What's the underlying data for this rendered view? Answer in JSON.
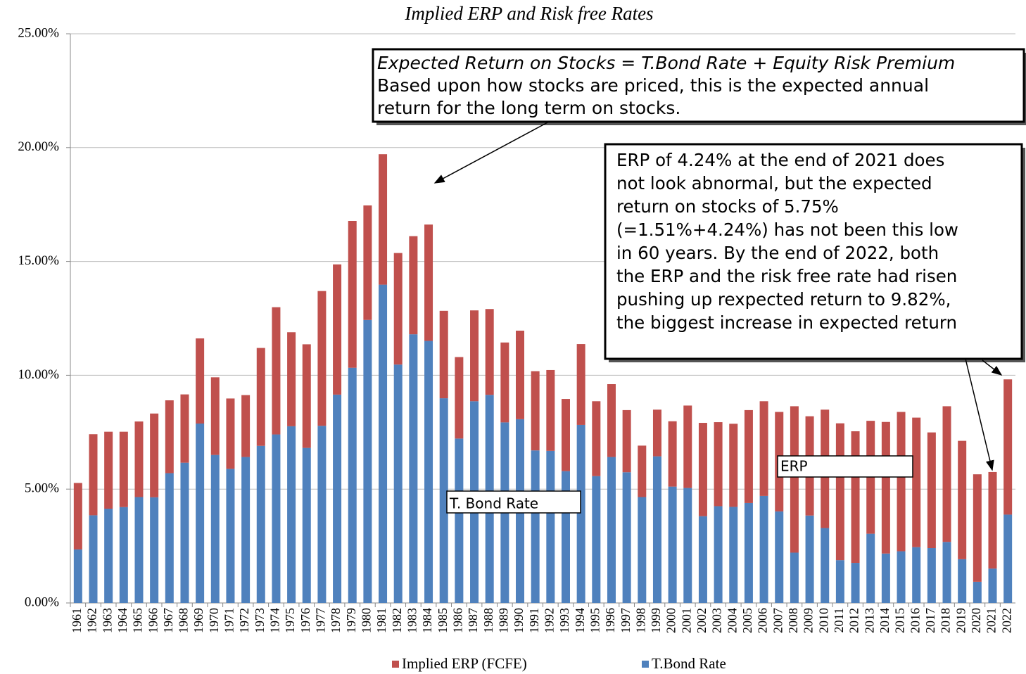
{
  "chart_data": {
    "type": "stacked_bar",
    "title": "Implied ERP and Risk free Rates",
    "categories": [
      "1961",
      "1962",
      "1963",
      "1964",
      "1965",
      "1966",
      "1967",
      "1968",
      "1969",
      "1970",
      "1971",
      "1972",
      "1973",
      "1974",
      "1975",
      "1976",
      "1977",
      "1978",
      "1979",
      "1980",
      "1981",
      "1982",
      "1983",
      "1984",
      "1985",
      "1986",
      "1987",
      "1988",
      "1989",
      "1990",
      "1991",
      "1992",
      "1993",
      "1994",
      "1995",
      "1996",
      "1997",
      "1998",
      "1999",
      "2000",
      "2001",
      "2002",
      "2003",
      "2004",
      "2005",
      "2006",
      "2007",
      "2008",
      "2009",
      "2010",
      "2011",
      "2012",
      "2013",
      "2014",
      "2015",
      "2016",
      "2017",
      "2018",
      "2019",
      "2020",
      "2021",
      "2022"
    ],
    "series": [
      {
        "name": "T.Bond Rate",
        "color": "#4f81bd",
        "values": [
          2.35,
          3.85,
          4.14,
          4.21,
          4.65,
          4.64,
          5.7,
          6.16,
          7.88,
          6.5,
          5.89,
          6.41,
          6.9,
          7.4,
          7.76,
          6.81,
          7.78,
          9.15,
          10.33,
          12.43,
          13.98,
          10.47,
          11.8,
          11.51,
          8.99,
          7.22,
          8.86,
          9.14,
          7.93,
          8.07,
          6.7,
          6.68,
          5.79,
          7.82,
          5.57,
          6.41,
          5.74,
          4.65,
          6.44,
          5.11,
          5.05,
          3.81,
          4.25,
          4.22,
          4.39,
          4.7,
          4.02,
          2.21,
          3.84,
          3.29,
          1.88,
          1.76,
          3.04,
          2.17,
          2.27,
          2.45,
          2.41,
          2.68,
          1.92,
          0.93,
          1.51,
          3.88
        ]
      },
      {
        "name": "Implied ERP (FCFE)",
        "color": "#c0504d",
        "values": [
          2.92,
          3.56,
          3.38,
          3.31,
          3.32,
          3.68,
          3.2,
          3.0,
          3.74,
          3.41,
          3.09,
          2.72,
          4.3,
          5.59,
          4.13,
          4.55,
          5.92,
          5.72,
          6.45,
          5.03,
          5.73,
          4.9,
          4.31,
          5.11,
          3.84,
          3.58,
          3.99,
          3.77,
          3.51,
          3.89,
          3.48,
          3.55,
          3.17,
          3.55,
          3.29,
          3.2,
          2.73,
          2.26,
          2.05,
          2.87,
          3.62,
          4.1,
          3.69,
          3.65,
          4.08,
          4.16,
          4.37,
          6.43,
          4.36,
          5.2,
          6.01,
          5.78,
          4.96,
          5.78,
          6.12,
          5.69,
          5.08,
          5.96,
          5.2,
          4.72,
          4.24,
          5.94
        ]
      }
    ],
    "ylim": [
      0,
      25
    ],
    "yticks": [
      {
        "value": 0,
        "label": "0.00%"
      },
      {
        "value": 5,
        "label": "5.00%"
      },
      {
        "value": 10,
        "label": "10.00%"
      },
      {
        "value": 15,
        "label": "15.00%"
      },
      {
        "value": 20,
        "label": "20.00%"
      },
      {
        "value": 25,
        "label": "25.00%"
      }
    ],
    "grid": true,
    "legend": "bottom",
    "annotations": [
      {
        "lines": [
          "Expected Return on Stocks = T.Bond Rate + Equity Risk Premium",
          "Based upon how stocks are priced, this is the expected annual",
          "return for the long term on stocks."
        ]
      },
      {
        "lines": [
          "ERP of 4.24% at the end of 2021 does",
          "not look abnormal, but the expected",
          "return on stocks of 5.75%",
          "(=1.51%+4.24%) has not been this low",
          "in 60 years. By the end of 2022, both",
          "the ERP and the risk free rate had risen",
          "pushing up rexpected return to 9.82%,",
          "the biggest increase in expected return"
        ]
      },
      {
        "lines": [
          "ERP"
        ]
      },
      {
        "lines": [
          "T. Bond Rate"
        ]
      }
    ]
  }
}
